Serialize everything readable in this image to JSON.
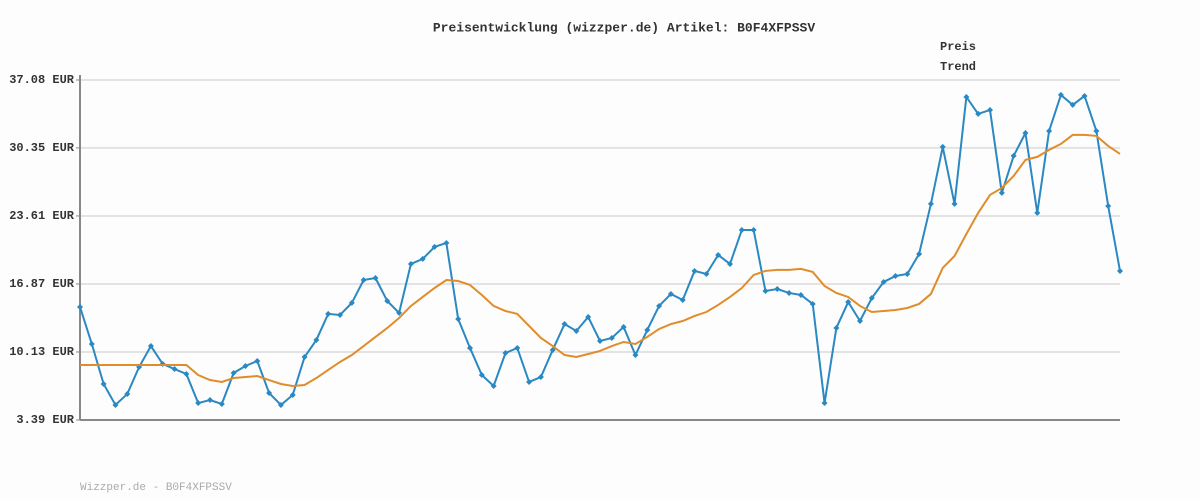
{
  "chart_data": {
    "type": "line",
    "title": "Preisentwicklung (wizzper.de) Artikel: B0F4XFPSSV",
    "footnote": "Wizzper.de - B0F4XFPSSV",
    "legend": "top-right",
    "grid": true,
    "ylim": [
      3.39,
      37.08
    ],
    "yticks": [
      {
        "value": 3.39,
        "label": "3.39 EUR"
      },
      {
        "value": 10.13,
        "label": "10.13 EUR"
      },
      {
        "value": 16.87,
        "label": "16.87 EUR"
      },
      {
        "value": 23.61,
        "label": "23.61 EUR"
      },
      {
        "value": 30.35,
        "label": "30.35 EUR"
      },
      {
        "value": 37.08,
        "label": "37.08 EUR"
      }
    ],
    "series": [
      {
        "name": "Preis",
        "color": "#2a88c2",
        "markers": true,
        "values": [
          14.59,
          10.92,
          6.96,
          4.88,
          5.97,
          8.64,
          10.72,
          8.94,
          8.44,
          7.95,
          5.07,
          5.37,
          4.98,
          8.05,
          8.74,
          9.24,
          6.07,
          4.88,
          5.87,
          9.63,
          11.32,
          13.9,
          13.8,
          14.99,
          17.26,
          17.46,
          15.18,
          14.0,
          18.85,
          19.35,
          20.54,
          20.93,
          13.4,
          10.53,
          7.85,
          6.76,
          10.03,
          10.53,
          7.16,
          7.65,
          10.33,
          12.9,
          12.21,
          13.6,
          11.22,
          11.52,
          12.61,
          9.83,
          12.31,
          14.69,
          15.88,
          15.28,
          18.16,
          17.86,
          19.74,
          18.85,
          22.22,
          22.22,
          16.17,
          16.37,
          15.98,
          15.78,
          14.89,
          5.07,
          12.51,
          15.08,
          13.2,
          15.48,
          17.07,
          17.66,
          17.86,
          19.84,
          24.8,
          30.45,
          24.8,
          35.4,
          33.72,
          34.11,
          25.89,
          29.56,
          31.83,
          23.91,
          32.03,
          35.6,
          34.61,
          35.5,
          32.03,
          24.6,
          18.16
        ]
      },
      {
        "name": "Trend",
        "color": "#e08c2a",
        "markers": false,
        "values": [
          8.84,
          8.84,
          8.84,
          8.84,
          8.84,
          8.84,
          8.84,
          8.84,
          8.84,
          8.84,
          7.85,
          7.35,
          7.16,
          7.55,
          7.65,
          7.75,
          7.35,
          6.96,
          6.76,
          6.86,
          7.55,
          8.35,
          9.14,
          9.83,
          10.72,
          11.62,
          12.51,
          13.5,
          14.69,
          15.58,
          16.47,
          17.26,
          17.16,
          16.77,
          15.78,
          14.69,
          14.19,
          13.9,
          12.71,
          11.52,
          10.72,
          9.83,
          9.63,
          9.93,
          10.23,
          10.72,
          11.12,
          10.92,
          11.62,
          12.41,
          12.9,
          13.2,
          13.7,
          14.09,
          14.79,
          15.58,
          16.47,
          17.76,
          18.16,
          18.26,
          18.26,
          18.36,
          18.06,
          16.67,
          15.98,
          15.58,
          14.69,
          14.09,
          14.19,
          14.29,
          14.49,
          14.89,
          15.88,
          18.46,
          19.64,
          21.82,
          23.91,
          25.69,
          26.38,
          27.57,
          29.16,
          29.46,
          30.16,
          30.75,
          31.64,
          31.64,
          31.54,
          30.55,
          29.75
        ]
      }
    ]
  }
}
